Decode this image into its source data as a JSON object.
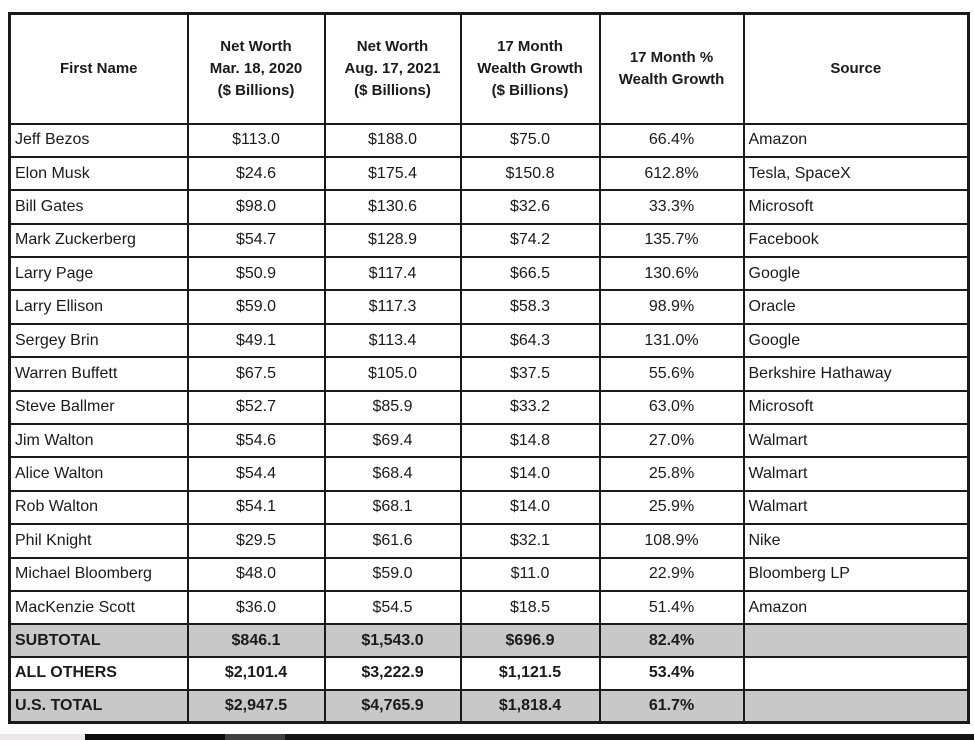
{
  "table": {
    "columns": [
      "First Name",
      "Net Worth\nMar. 18, 2020\n($ Billions)",
      "Net Worth\nAug. 17, 2021\n($ Billions)",
      "17 Month\nWealth Growth\n($ Billions)",
      "17 Month %\nWealth Growth",
      "Source"
    ],
    "rows": [
      {
        "cells": [
          "Jeff Bezos",
          "$113.0",
          "$188.0",
          "$75.0",
          "66.4%",
          "Amazon"
        ]
      },
      {
        "cells": [
          "Elon Musk",
          "$24.6",
          "$175.4",
          "$150.8",
          "612.8%",
          "Tesla, SpaceX"
        ]
      },
      {
        "cells": [
          "Bill Gates",
          "$98.0",
          "$130.6",
          "$32.6",
          "33.3%",
          "Microsoft"
        ]
      },
      {
        "cells": [
          "Mark Zuckerberg",
          "$54.7",
          "$128.9",
          "$74.2",
          "135.7%",
          "Facebook"
        ]
      },
      {
        "cells": [
          "Larry Page",
          "$50.9",
          "$117.4",
          "$66.5",
          "130.6%",
          "Google"
        ]
      },
      {
        "cells": [
          "Larry Ellison",
          "$59.0",
          "$117.3",
          "$58.3",
          "98.9%",
          "Oracle"
        ]
      },
      {
        "cells": [
          "Sergey Brin",
          "$49.1",
          "$113.4",
          "$64.3",
          "131.0%",
          "Google"
        ]
      },
      {
        "cells": [
          "Warren Buffett",
          "$67.5",
          "$105.0",
          "$37.5",
          "55.6%",
          "Berkshire Hathaway"
        ]
      },
      {
        "cells": [
          "Steve Ballmer",
          "$52.7",
          "$85.9",
          "$33.2",
          "63.0%",
          "Microsoft"
        ]
      },
      {
        "cells": [
          "Jim Walton",
          "$54.6",
          "$69.4",
          "$14.8",
          "27.0%",
          "Walmart"
        ]
      },
      {
        "cells": [
          "Alice Walton",
          "$54.4",
          "$68.4",
          "$14.0",
          "25.8%",
          "Walmart"
        ]
      },
      {
        "cells": [
          "Rob Walton",
          "$54.1",
          "$68.1",
          "$14.0",
          "25.9%",
          "Walmart"
        ]
      },
      {
        "cells": [
          "Phil Knight",
          "$29.5",
          "$61.6",
          "$32.1",
          "108.9%",
          "Nike"
        ]
      },
      {
        "cells": [
          "Michael Bloomberg",
          "$48.0",
          "$59.0",
          "$11.0",
          "22.9%",
          "Bloomberg LP"
        ]
      },
      {
        "cells": [
          "MacKenzie Scott",
          "$36.0",
          "$54.5",
          "$18.5",
          "51.4%",
          "Amazon"
        ]
      }
    ],
    "totals": [
      {
        "cells": [
          "SUBTOTAL",
          "$846.1",
          "$1,543.0",
          "$696.9",
          "82.4%",
          ""
        ],
        "shaded": true
      },
      {
        "cells": [
          "ALL OTHERS",
          "$2,101.4",
          "$3,222.9",
          "$1,121.5",
          "53.4%",
          ""
        ],
        "shaded": false
      },
      {
        "cells": [
          "U.S. TOTAL",
          "$2,947.5",
          "$4,765.9",
          "$1,818.4",
          "61.7%",
          ""
        ],
        "shaded": true
      }
    ]
  },
  "colors": {
    "border": "#1a1a1a",
    "shaded_row_bg": "#c8c8c8",
    "page_bg": "#ffffff",
    "text": "#1a1a1a",
    "bottom_bar_segments": [
      "#ebe9e5",
      "#0d0d0d",
      "#3f3f3f",
      "#161616"
    ]
  }
}
